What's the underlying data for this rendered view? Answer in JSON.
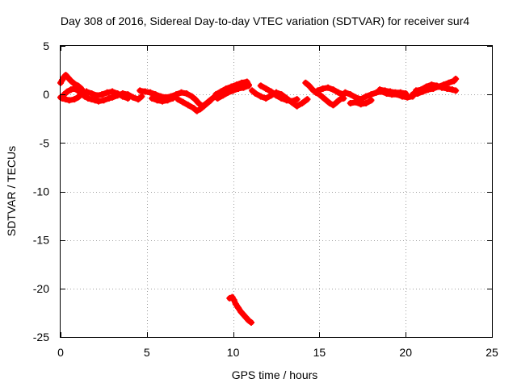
{
  "chart_data": {
    "type": "scatter",
    "title": "Day 308 of 2016, Sidereal Day-to-day VTEC variation (SDTVAR) for receiver sur4",
    "xlabel": "GPS time / hours",
    "ylabel": "SDTVAR / TECUs",
    "xlim": [
      0,
      25
    ],
    "ylim": [
      -25,
      5
    ],
    "xticks": [
      0,
      5,
      10,
      15,
      20,
      25
    ],
    "yticks": [
      5,
      0,
      -5,
      -10,
      -15,
      -20,
      -25
    ],
    "grid": true,
    "legend": "none",
    "series": [
      {
        "name": "SDTVAR",
        "color": "#ff0000",
        "marker": "plus",
        "segments": [
          [
            [
              0.0,
              1.2
            ],
            [
              0.1,
              1.5
            ],
            [
              0.2,
              1.8
            ],
            [
              0.3,
              2.0
            ],
            [
              0.45,
              1.7
            ],
            [
              0.6,
              1.4
            ],
            [
              0.8,
              1.1
            ],
            [
              1.0,
              0.9
            ],
            [
              1.2,
              0.6
            ],
            [
              1.3,
              0.3
            ],
            [
              1.2,
              0.0
            ],
            [
              1.0,
              -0.3
            ],
            [
              0.8,
              -0.5
            ],
            [
              0.5,
              -0.6
            ],
            [
              0.3,
              -0.5
            ],
            [
              0.1,
              -0.4
            ],
            [
              0.0,
              -0.3
            ]
          ],
          [
            [
              0.2,
              0.0
            ],
            [
              0.4,
              0.3
            ],
            [
              0.6,
              0.5
            ],
            [
              0.8,
              0.6
            ],
            [
              1.0,
              0.4
            ],
            [
              1.2,
              0.1
            ],
            [
              1.4,
              -0.2
            ],
            [
              1.6,
              -0.4
            ],
            [
              1.8,
              -0.5
            ],
            [
              2.0,
              -0.6
            ],
            [
              2.2,
              -0.7
            ],
            [
              2.5,
              -0.6
            ],
            [
              2.8,
              -0.4
            ],
            [
              3.0,
              -0.3
            ],
            [
              3.3,
              -0.1
            ],
            [
              3.6,
              0.1
            ],
            [
              3.9,
              0.0
            ],
            [
              4.2,
              -0.3
            ],
            [
              4.5,
              -0.5
            ],
            [
              4.7,
              -0.2
            ]
          ],
          [
            [
              1.5,
              0.3
            ],
            [
              1.8,
              0.1
            ],
            [
              2.1,
              -0.1
            ],
            [
              2.4,
              0.0
            ],
            [
              2.7,
              0.2
            ],
            [
              3.0,
              0.3
            ],
            [
              3.3,
              0.1
            ],
            [
              3.6,
              -0.2
            ],
            [
              3.9,
              -0.4
            ]
          ],
          [
            [
              4.6,
              0.4
            ],
            [
              4.9,
              0.3
            ],
            [
              5.2,
              0.2
            ],
            [
              5.5,
              0.0
            ],
            [
              5.8,
              -0.2
            ],
            [
              6.1,
              -0.3
            ],
            [
              6.4,
              -0.2
            ],
            [
              6.7,
              0.0
            ],
            [
              7.0,
              0.2
            ],
            [
              7.3,
              0.1
            ],
            [
              7.6,
              -0.2
            ],
            [
              7.8,
              -0.5
            ],
            [
              8.0,
              -0.9
            ],
            [
              8.2,
              -1.2
            ],
            [
              8.4,
              -1.0
            ],
            [
              8.6,
              -0.7
            ],
            [
              8.8,
              -0.4
            ],
            [
              9.0,
              -0.2
            ]
          ],
          [
            [
              6.8,
              -0.5
            ],
            [
              7.1,
              -0.8
            ],
            [
              7.4,
              -1.1
            ],
            [
              7.7,
              -1.4
            ],
            [
              7.9,
              -1.7
            ],
            [
              8.1,
              -1.5
            ],
            [
              8.3,
              -1.2
            ],
            [
              8.5,
              -0.9
            ],
            [
              8.7,
              -0.6
            ]
          ],
          [
            [
              5.3,
              -0.4
            ],
            [
              5.6,
              -0.6
            ],
            [
              5.9,
              -0.7
            ],
            [
              6.2,
              -0.6
            ],
            [
              6.5,
              -0.4
            ]
          ],
          [
            [
              9.0,
              0.0
            ],
            [
              9.3,
              0.3
            ],
            [
              9.6,
              0.6
            ],
            [
              9.9,
              0.8
            ],
            [
              10.2,
              1.0
            ],
            [
              10.5,
              1.2
            ],
            [
              10.8,
              1.3
            ],
            [
              10.9,
              1.0
            ]
          ],
          [
            [
              9.1,
              -0.4
            ],
            [
              9.4,
              -0.1
            ],
            [
              9.7,
              0.2
            ],
            [
              10.0,
              0.4
            ],
            [
              10.3,
              0.6
            ],
            [
              10.6,
              0.7
            ],
            [
              10.9,
              0.9
            ]
          ],
          [
            [
              11.1,
              0.4
            ],
            [
              11.3,
              0.1
            ],
            [
              11.6,
              -0.2
            ],
            [
              11.9,
              -0.4
            ],
            [
              12.2,
              -0.1
            ],
            [
              12.5,
              0.2
            ],
            [
              12.8,
              0.0
            ],
            [
              13.1,
              -0.4
            ],
            [
              13.4,
              -0.8
            ],
            [
              13.7,
              -1.2
            ],
            [
              14.0,
              -0.9
            ],
            [
              14.3,
              -0.5
            ]
          ],
          [
            [
              11.6,
              0.9
            ],
            [
              11.9,
              0.6
            ],
            [
              12.2,
              0.3
            ],
            [
              12.5,
              -0.1
            ],
            [
              12.8,
              -0.4
            ],
            [
              13.1,
              -0.6
            ],
            [
              13.4,
              -0.7
            ],
            [
              13.7,
              -0.5
            ]
          ],
          [
            [
              14.2,
              1.2
            ],
            [
              14.4,
              0.9
            ],
            [
              14.6,
              0.5
            ],
            [
              14.8,
              0.2
            ],
            [
              15.0,
              0.0
            ],
            [
              15.2,
              -0.3
            ],
            [
              15.4,
              -0.6
            ],
            [
              15.6,
              -0.9
            ],
            [
              15.8,
              -1.1
            ],
            [
              16.0,
              -0.8
            ],
            [
              16.2,
              -0.5
            ],
            [
              16.4,
              -0.4
            ]
          ],
          [
            [
              14.9,
              0.4
            ],
            [
              15.2,
              0.6
            ],
            [
              15.5,
              0.7
            ],
            [
              15.8,
              0.5
            ],
            [
              16.1,
              0.2
            ],
            [
              16.4,
              0.0
            ]
          ],
          [
            [
              16.5,
              0.2
            ],
            [
              16.8,
              0.0
            ],
            [
              17.1,
              -0.3
            ],
            [
              17.4,
              -0.5
            ],
            [
              17.7,
              -0.2
            ],
            [
              18.0,
              0.0
            ],
            [
              18.3,
              0.2
            ],
            [
              18.6,
              0.3
            ],
            [
              18.9,
              0.1
            ],
            [
              19.2,
              0.0
            ],
            [
              19.5,
              0.0
            ],
            [
              19.8,
              -0.2
            ],
            [
              20.1,
              -0.3
            ],
            [
              20.4,
              -0.2
            ]
          ],
          [
            [
              16.8,
              -0.9
            ],
            [
              17.1,
              -0.8
            ],
            [
              17.4,
              -1.0
            ],
            [
              17.7,
              -0.9
            ],
            [
              18.0,
              -0.6
            ]
          ],
          [
            [
              18.5,
              0.5
            ],
            [
              18.8,
              0.4
            ],
            [
              19.1,
              0.3
            ],
            [
              19.4,
              0.2
            ],
            [
              19.7,
              0.2
            ],
            [
              20.0,
              0.1
            ]
          ],
          [
            [
              20.4,
              0.0
            ],
            [
              20.7,
              0.1
            ],
            [
              21.0,
              0.3
            ],
            [
              21.3,
              0.5
            ],
            [
              21.6,
              0.6
            ],
            [
              21.9,
              0.8
            ],
            [
              22.2,
              1.0
            ],
            [
              22.5,
              1.2
            ],
            [
              22.8,
              1.4
            ],
            [
              22.9,
              1.6
            ]
          ],
          [
            [
              20.6,
              0.4
            ],
            [
              20.9,
              0.5
            ],
            [
              21.2,
              0.8
            ],
            [
              21.5,
              1.0
            ],
            [
              21.8,
              0.9
            ],
            [
              22.1,
              0.7
            ],
            [
              22.4,
              0.6
            ],
            [
              22.7,
              0.5
            ],
            [
              22.9,
              0.4
            ]
          ],
          [
            [
              9.8,
              -21.0
            ],
            [
              9.95,
              -20.9
            ],
            [
              10.05,
              -21.2
            ],
            [
              10.15,
              -21.6
            ],
            [
              10.3,
              -22.0
            ],
            [
              10.45,
              -22.4
            ],
            [
              10.6,
              -22.7
            ],
            [
              10.75,
              -23.0
            ],
            [
              10.9,
              -23.3
            ],
            [
              11.05,
              -23.5
            ]
          ]
        ]
      }
    ]
  }
}
